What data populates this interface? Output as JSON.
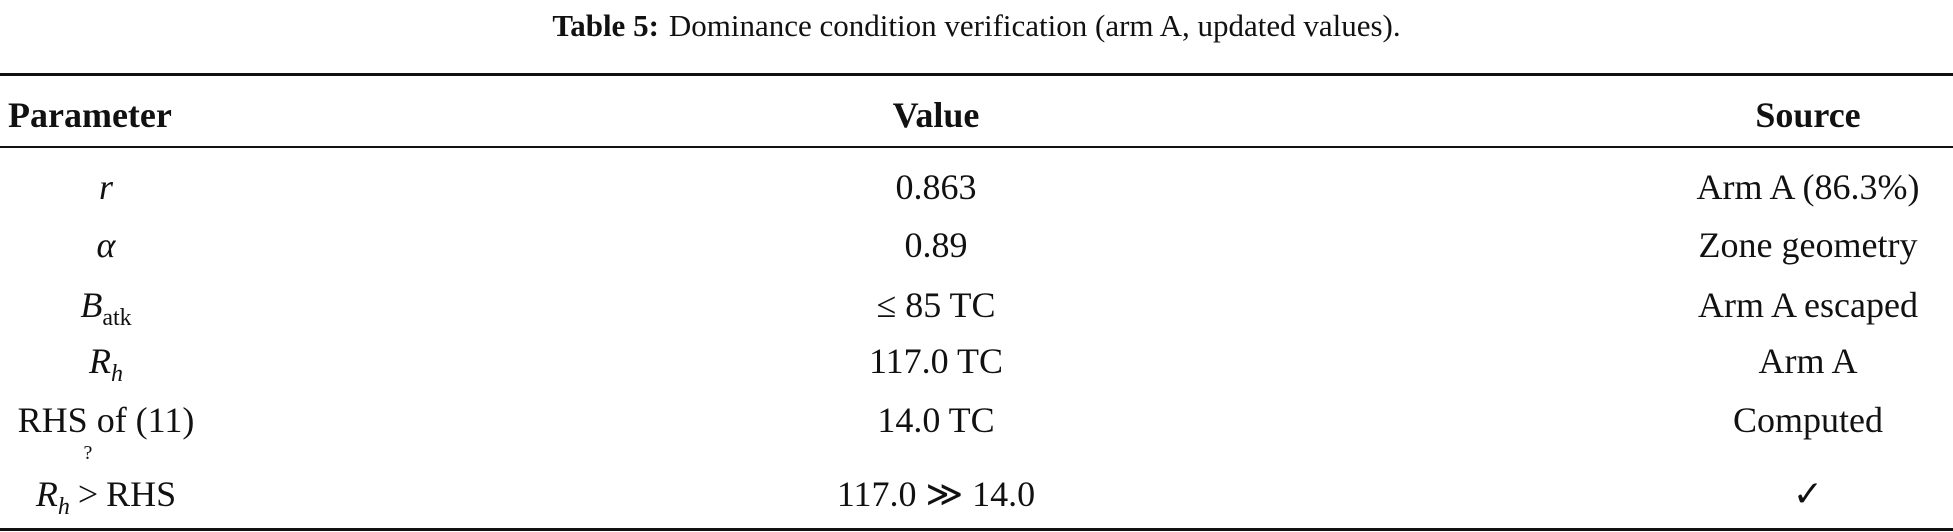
{
  "caption": {
    "label": "Table 5:",
    "text": "Dominance condition verification (arm A, updated values)."
  },
  "table": {
    "header": [
      "Parameter",
      "Value",
      "Source"
    ],
    "rows": [
      {
        "parameter": {
          "base": "r"
        },
        "value": "0.863",
        "source": "Arm A (86.3%)"
      },
      {
        "parameter": {
          "base": "α"
        },
        "value": "0.89",
        "source": "Zone geometry"
      },
      {
        "parameter": {
          "base": "B",
          "sub": "atk"
        },
        "value": "≤ 85 TC",
        "source": "Arm A escaped"
      },
      {
        "parameter": {
          "base": "R",
          "sub": "h"
        },
        "value": "117.0 TC",
        "source": "Arm A"
      },
      {
        "parameter": {
          "text": "RHS of (11)"
        },
        "value": "14.0 TC",
        "source": "Computed"
      },
      {
        "parameter": {
          "base": "R",
          "sub": "h",
          "relation_mark": "?",
          "relation": ">",
          "rhs": "RHS"
        },
        "value": "117.0 ≫ 14.0",
        "source": "✓"
      }
    ]
  }
}
